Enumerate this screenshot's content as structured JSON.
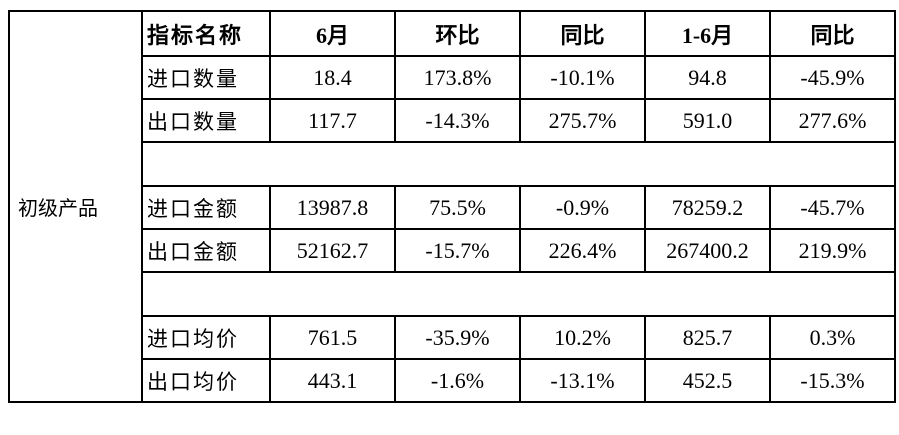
{
  "category": "初级产品",
  "headers": [
    "指标名称",
    "6月",
    "环比",
    "同比",
    "1-6月",
    "同比"
  ],
  "rows": [
    [
      "进口数量",
      "18.4",
      "173.8%",
      "-10.1%",
      "94.8",
      "-45.9%"
    ],
    [
      "出口数量",
      "117.7",
      "-14.3%",
      "275.7%",
      "591.0",
      "277.6%"
    ],
    [
      "进口金额",
      "13987.8",
      "75.5%",
      "-0.9%",
      "78259.2",
      "-45.7%"
    ],
    [
      "出口金额",
      "52162.7",
      "-15.7%",
      "226.4%",
      "267400.2",
      "219.9%"
    ],
    [
      "进口均价",
      "761.5",
      "-35.9%",
      "10.2%",
      "825.7",
      "0.3%"
    ],
    [
      "出口均价",
      "443.1",
      "-1.6%",
      "-13.1%",
      "452.5",
      "-15.3%"
    ]
  ]
}
